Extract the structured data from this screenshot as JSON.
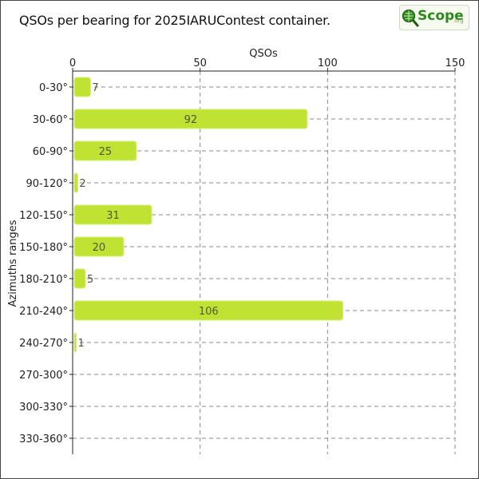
{
  "title": "QSOs per bearing for 2025IARUContest container.",
  "logo": {
    "text": "Scope",
    "sub": ".org"
  },
  "chart_data": {
    "type": "bar",
    "orientation": "horizontal",
    "xlabel": "QSOs",
    "ylabel": "Azimuths ranges",
    "xlim": [
      0,
      150
    ],
    "xticks": [
      0,
      50,
      100,
      150
    ],
    "grid": true,
    "categories": [
      "0-30°",
      "30-60°",
      "60-90°",
      "90-120°",
      "120-150°",
      "150-180°",
      "180-210°",
      "210-240°",
      "240-270°",
      "270-300°",
      "300-330°",
      "330-360°"
    ],
    "values": [
      7,
      92,
      25,
      2,
      31,
      20,
      5,
      106,
      1,
      0,
      0,
      0
    ],
    "bar_color": "#bfe233",
    "label_color": "#4a5a3a"
  }
}
